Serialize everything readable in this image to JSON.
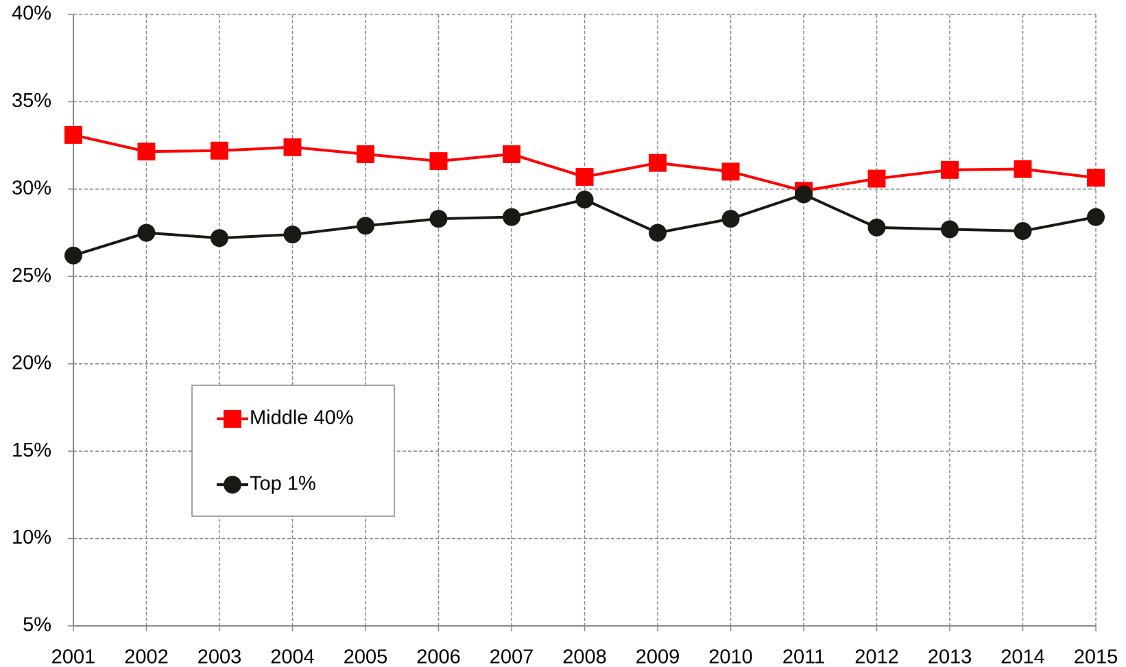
{
  "chart_data": {
    "type": "line",
    "x": [
      2001,
      2002,
      2003,
      2004,
      2005,
      2006,
      2007,
      2008,
      2009,
      2010,
      2011,
      2012,
      2013,
      2014,
      2015
    ],
    "xlim": [
      2001,
      2015
    ],
    "xticks": [
      2001,
      2002,
      2003,
      2004,
      2005,
      2006,
      2007,
      2008,
      2009,
      2010,
      2011,
      2012,
      2013,
      2014,
      2015
    ],
    "ylim": [
      5,
      40
    ],
    "yticks": [
      {
        "value": 5,
        "label": "5%"
      },
      {
        "value": 10,
        "label": "10%"
      },
      {
        "value": 15,
        "label": "15%"
      },
      {
        "value": 20,
        "label": "20%"
      },
      {
        "value": 25,
        "label": "25%"
      },
      {
        "value": 30,
        "label": "30%"
      },
      {
        "value": 35,
        "label": "35%"
      },
      {
        "value": 40,
        "label": "40%"
      }
    ],
    "grid": true,
    "series": [
      {
        "name": "Middle 40%",
        "color": "#ff0000",
        "marker": "square",
        "values": [
          33.1,
          32.15,
          32.2,
          32.4,
          32.0,
          31.6,
          32.0,
          30.7,
          31.5,
          31.0,
          29.9,
          30.6,
          31.1,
          31.15,
          30.65
        ]
      },
      {
        "name": "Top 1%",
        "color": "#1a1a14",
        "marker": "circle",
        "values": [
          26.2,
          27.5,
          27.2,
          27.4,
          27.9,
          28.3,
          28.4,
          29.4,
          27.5,
          28.3,
          29.7,
          27.8,
          27.7,
          27.6,
          28.4
        ]
      }
    ]
  }
}
